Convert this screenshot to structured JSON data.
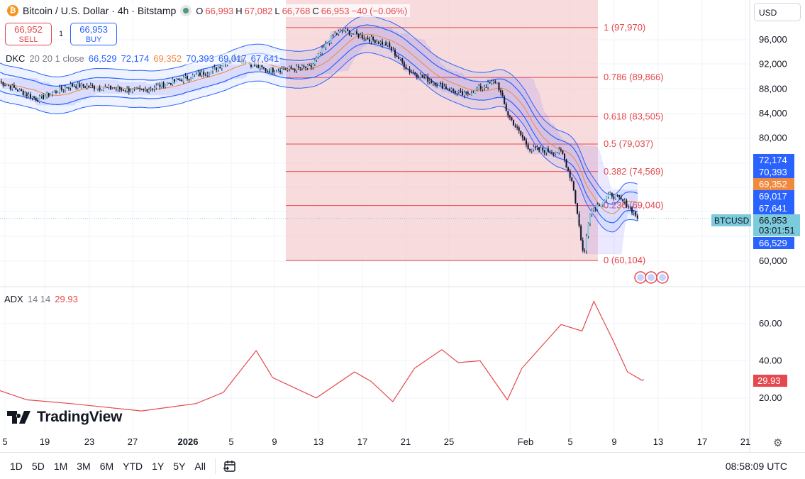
{
  "header": {
    "symbol_icon": "bitcoin-icon",
    "title": "Bitcoin / U.S. Dollar · 4h · Bitstamp",
    "market_status": "market-open-dot",
    "ohlc": {
      "o_label": "O",
      "o": "66,993",
      "h_label": "H",
      "h": "67,082",
      "l_label": "L",
      "l": "66,768",
      "c_label": "C",
      "c": "66,953",
      "change": "−40 (−0.06%)"
    }
  },
  "trade": {
    "sell_price": "66,952",
    "sell_label": "SELL",
    "spread": "1",
    "buy_price": "66,953",
    "buy_label": "BUY"
  },
  "indicator_dkc": {
    "name": "DKC",
    "params": "20 20 1 close",
    "values": [
      "66,529",
      "72,174",
      "69,352",
      "70,393",
      "69,017",
      "67,641"
    ]
  },
  "indicator_adx": {
    "name": "ADX",
    "params": "14 14",
    "value": "29.93"
  },
  "currency": "USD",
  "colors": {
    "up": "#131722",
    "down": "#131722",
    "band": "#2962ff",
    "mid": "#f0883e",
    "fib": "#e5484d",
    "fib_zone": "#f4c7c9",
    "adx": "#e5484d",
    "last": "#7ccbdc"
  },
  "price_axis": {
    "ticks": [
      "96,000",
      "92,000",
      "88,000",
      "84,000",
      "80,000",
      "60,000"
    ],
    "labels": [
      {
        "text": "72,174",
        "color": "#2962ff"
      },
      {
        "text": "70,393",
        "color": "#2962ff"
      },
      {
        "text": "69,352",
        "color": "#f0883e"
      },
      {
        "text": "69,017",
        "color": "#2962ff"
      },
      {
        "text": "67,641",
        "color": "#2962ff"
      },
      {
        "text": "66,953",
        "color": "#7ccbdc",
        "sub": "03:01:51"
      },
      {
        "text": "66,529",
        "color": "#2962ff"
      }
    ],
    "symbol_tag": "BTCUSD"
  },
  "adx_axis": {
    "ticks": [
      "60.00",
      "40.00",
      "20.00"
    ],
    "last": "29.93"
  },
  "time_axis": [
    "5",
    "19",
    "23",
    "27",
    "2026",
    "5",
    "9",
    "13",
    "17",
    "21",
    "25",
    "Feb",
    "5",
    "9",
    "13",
    "17",
    "21"
  ],
  "fib_levels": [
    {
      "label": "1 (97,970)",
      "price": 97970
    },
    {
      "label": "0.786 (89,866)",
      "price": 89866
    },
    {
      "label": "0.618 (83,505)",
      "price": 83505
    },
    {
      "label": "0.5 (79,037)",
      "price": 79037
    },
    {
      "label": "0.382 (74,569)",
      "price": 74569
    },
    {
      "label": "0.236 (69,040)",
      "price": 69040
    },
    {
      "label": "0 (60,104)",
      "price": 60104
    }
  ],
  "chart_data": {
    "type": "candlestick",
    "price_ylim": [
      57000,
      100500
    ],
    "adx_ylim": [
      5,
      78
    ],
    "price_keypoints": [
      [
        "2025-12-14T12",
        89200
      ],
      [
        "2025-12-18",
        86300
      ],
      [
        "2025-12-21",
        88600
      ],
      [
        "2025-12-27T12",
        87700
      ],
      [
        "2026-01-03",
        91000
      ],
      [
        "2026-01-05",
        93200
      ],
      [
        "2026-01-08",
        91000
      ],
      [
        "2026-01-12",
        91500
      ],
      [
        "2026-01-14",
        96700
      ],
      [
        "2026-01-15",
        97500
      ],
      [
        "2026-01-19",
        95200
      ],
      [
        "2026-01-21",
        91000
      ],
      [
        "2026-01-23",
        89300
      ],
      [
        "2026-01-26",
        87000
      ],
      [
        "2026-01-29",
        89300
      ],
      [
        "2026-01-30",
        84000
      ],
      [
        "2026-02-01",
        78300
      ],
      [
        "2026-02-04",
        77700
      ],
      [
        "2026-02-05",
        72500
      ],
      [
        "2026-02-06",
        60500
      ],
      [
        "2026-02-06T12",
        68000
      ],
      [
        "2026-02-08T12",
        70900
      ],
      [
        "2026-02-10",
        69200
      ],
      [
        "2026-02-11",
        66953
      ]
    ],
    "adx_keypoints": [
      [
        "2025-12-14T12",
        24
      ],
      [
        "2025-12-17",
        19
      ],
      [
        "2025-12-21",
        17
      ],
      [
        "2025-12-27T12",
        13
      ],
      [
        "2026-01-01T12",
        17
      ],
      [
        "2026-01-04",
        23
      ],
      [
        "2026-01-07",
        45.5
      ],
      [
        "2026-01-08T12",
        31
      ],
      [
        "2026-01-12T12",
        20
      ],
      [
        "2026-01-16",
        34
      ],
      [
        "2026-01-17T12",
        29
      ],
      [
        "2026-01-19T12",
        18
      ],
      [
        "2026-01-21T12",
        36
      ],
      [
        "2026-01-24",
        46
      ],
      [
        "2026-01-25T12",
        39
      ],
      [
        "2026-01-27T12",
        40
      ],
      [
        "2026-01-30",
        19
      ],
      [
        "2026-01-31T08",
        36
      ],
      [
        "2026-02-03T22",
        59.5
      ],
      [
        "2026-02-05T20",
        56
      ],
      [
        "2026-02-06T22",
        72
      ],
      [
        "2026-02-08T16",
        51
      ],
      [
        "2026-02-10",
        34
      ],
      [
        "2026-02-11T08",
        29.5
      ],
      [
        "2026-02-11T12",
        29.93
      ]
    ]
  },
  "bottom": {
    "ranges": [
      "1D",
      "5D",
      "1M",
      "3M",
      "6M",
      "YTD",
      "1Y",
      "5Y",
      "All"
    ],
    "calendar_icon": "goto-date-icon",
    "clock": "08:58:09 UTC"
  },
  "logo": "TradingView"
}
